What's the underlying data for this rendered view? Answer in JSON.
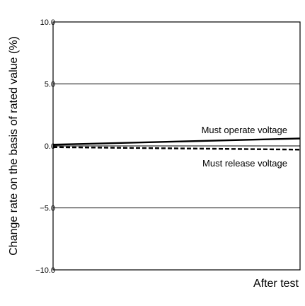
{
  "chart_data": {
    "type": "line",
    "title": "",
    "xlabel": "After test",
    "ylabel": "Change rate on the basis of rated value (%)",
    "ylim": [
      -10,
      10
    ],
    "yticks": [
      10.0,
      5.0,
      0.0,
      -5.0,
      -10.0
    ],
    "ytick_labels": [
      "10.0",
      "5.0",
      "0.0",
      "−5.0",
      "−10.0"
    ],
    "gridlines": [
      5.0,
      0.0,
      -5.0
    ],
    "x": [
      0,
      1
    ],
    "series": [
      {
        "name": "Must operate voltage",
        "values": [
          0.1,
          0.6
        ],
        "style": "solid",
        "color": "#000000"
      },
      {
        "name": "Must release voltage",
        "values": [
          -0.1,
          -0.3
        ],
        "style": "dashed",
        "color": "#000000"
      }
    ]
  }
}
